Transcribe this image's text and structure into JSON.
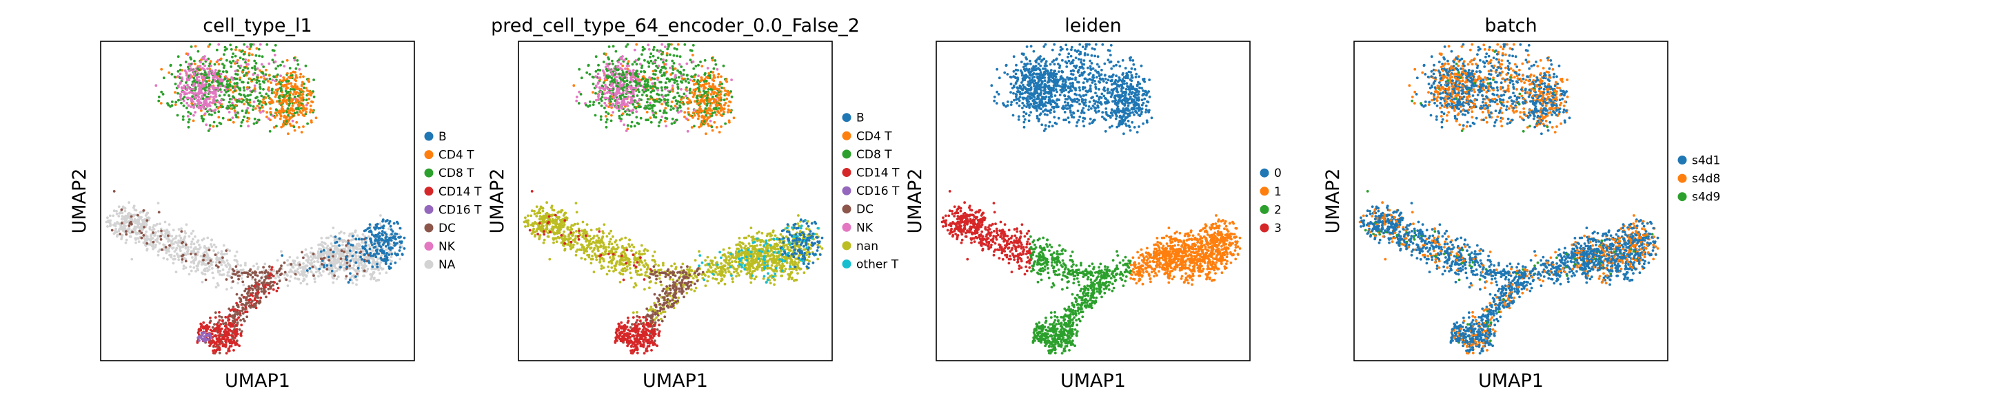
{
  "figure": {
    "background": "#ffffff"
  },
  "chart_data": [
    {
      "type": "scatter",
      "title": "cell_type_l1",
      "xlabel": "UMAP1",
      "ylabel": "UMAP2",
      "grid": false,
      "ticks": false,
      "legend_placement": "right",
      "legend": [
        {
          "label": "B",
          "color": "#1f77b4"
        },
        {
          "label": "CD4 T",
          "color": "#ff7f0e"
        },
        {
          "label": "CD8 T",
          "color": "#2ca02c"
        },
        {
          "label": "CD14 T",
          "color": "#d62728"
        },
        {
          "label": "CD16 T",
          "color": "#9467bd"
        },
        {
          "label": "DC",
          "color": "#8c564b"
        },
        {
          "label": "NK",
          "color": "#e377c2"
        },
        {
          "label": "NA",
          "color": "#d3d3d3"
        }
      ]
    },
    {
      "type": "scatter",
      "title": "pred_cell_type_64_encoder_0.0_False_2",
      "xlabel": "UMAP1",
      "ylabel": "UMAP2",
      "grid": false,
      "ticks": false,
      "legend_placement": "right",
      "legend": [
        {
          "label": "B",
          "color": "#1f77b4"
        },
        {
          "label": "CD4 T",
          "color": "#ff7f0e"
        },
        {
          "label": "CD8 T",
          "color": "#2ca02c"
        },
        {
          "label": "CD14 T",
          "color": "#d62728"
        },
        {
          "label": "CD16 T",
          "color": "#9467bd"
        },
        {
          "label": "DC",
          "color": "#8c564b"
        },
        {
          "label": "NK",
          "color": "#e377c2"
        },
        {
          "label": "nan",
          "color": "#bcbd22"
        },
        {
          "label": "other T",
          "color": "#17becf"
        }
      ]
    },
    {
      "type": "scatter",
      "title": "leiden",
      "xlabel": "UMAP1",
      "ylabel": "UMAP2",
      "grid": false,
      "ticks": false,
      "legend_placement": "right",
      "legend": [
        {
          "label": "0",
          "color": "#1f77b4"
        },
        {
          "label": "1",
          "color": "#ff7f0e"
        },
        {
          "label": "2",
          "color": "#2ca02c"
        },
        {
          "label": "3",
          "color": "#d62728"
        }
      ]
    },
    {
      "type": "scatter",
      "title": "batch",
      "xlabel": "UMAP1",
      "ylabel": "UMAP2",
      "grid": false,
      "ticks": false,
      "legend_placement": "right",
      "legend": [
        {
          "label": "s4d1",
          "color": "#1f77b4"
        },
        {
          "label": "s4d8",
          "color": "#ff7f0e"
        },
        {
          "label": "s4d9",
          "color": "#2ca02c"
        }
      ]
    }
  ]
}
